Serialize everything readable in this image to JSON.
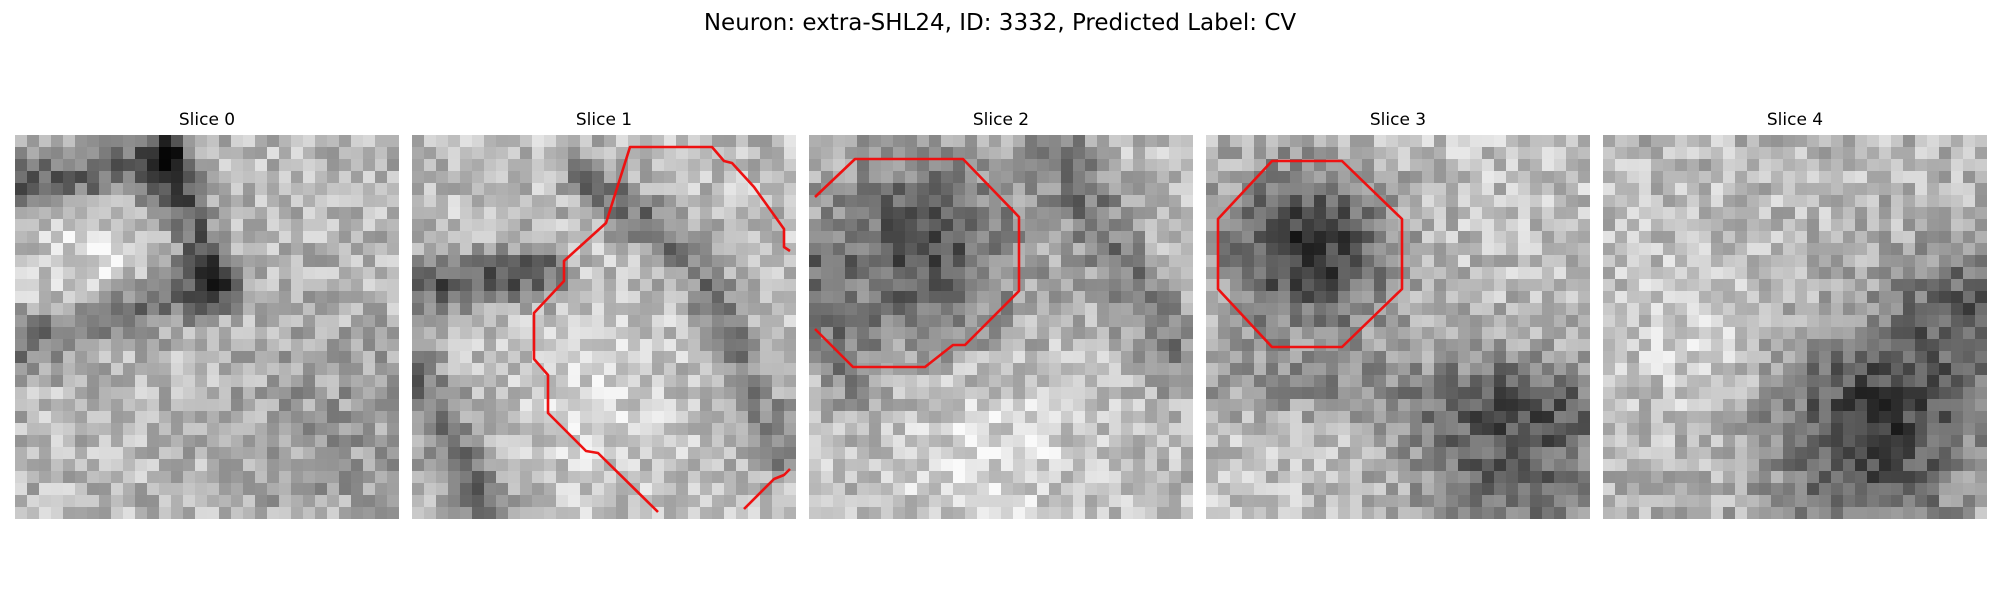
{
  "figure": {
    "title": "Neuron: extra-SHL24, ID: 3332, Predicted Label: CV",
    "contour_color": "#ee1111"
  },
  "panels": [
    {
      "title": "Slice 0",
      "has_contour": false
    },
    {
      "title": "Slice 1",
      "has_contour": true
    },
    {
      "title": "Slice 2",
      "has_contour": true
    },
    {
      "title": "Slice 3",
      "has_contour": true
    },
    {
      "title": "Slice 4",
      "has_contour": false
    }
  ]
}
